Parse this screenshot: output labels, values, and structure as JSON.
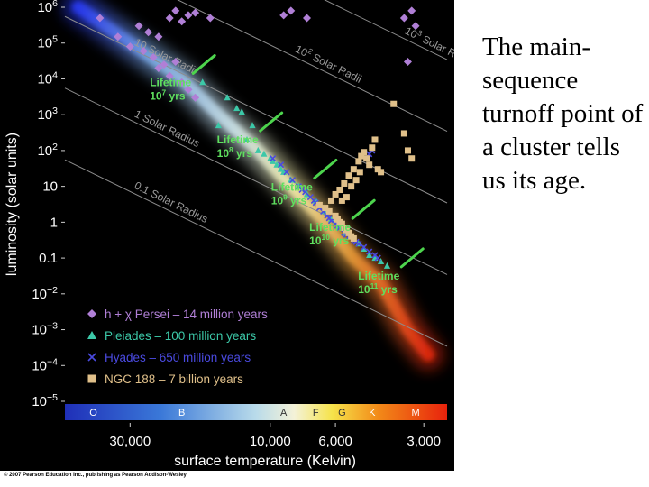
{
  "caption": "The main-sequence turnoff point of a cluster tells us its age.",
  "credit": "© 2007 Pearson Education Inc., publishing as Pearson Addison-Wesley",
  "chart_data": {
    "type": "scatter",
    "title": "",
    "xlabel": "surface temperature (Kelvin)",
    "ylabel": "luminosity (solar units)",
    "x_scale": "log-reversed",
    "y_scale": "log",
    "xlim": [
      50000,
      2500
    ],
    "ylim": [
      1e-05,
      1000000.0
    ],
    "x_ticks": [
      {
        "value": 30000,
        "label": "30,000"
      },
      {
        "value": 10000,
        "label": "10,000"
      },
      {
        "value": 6000,
        "label": "6,000"
      },
      {
        "value": 3000,
        "label": "3,000"
      }
    ],
    "y_ticks": [
      {
        "value": 1000000.0,
        "base": "10",
        "exp": "6"
      },
      {
        "value": 100000.0,
        "base": "10",
        "exp": "5"
      },
      {
        "value": 10000.0,
        "base": "10",
        "exp": "4"
      },
      {
        "value": 1000.0,
        "base": "10",
        "exp": "3"
      },
      {
        "value": 100.0,
        "base": "10",
        "exp": "2"
      },
      {
        "value": 10,
        "base": "10",
        "exp": ""
      },
      {
        "value": 1,
        "base": "1",
        "exp": ""
      },
      {
        "value": 0.1,
        "base": "0.1",
        "exp": ""
      },
      {
        "value": 0.01,
        "base": "10",
        "exp": "−2"
      },
      {
        "value": 0.001,
        "base": "10",
        "exp": "−3"
      },
      {
        "value": 0.0001,
        "base": "10",
        "exp": "−4"
      },
      {
        "value": 1e-05,
        "base": "10",
        "exp": "−5"
      }
    ],
    "spectral_classes": [
      {
        "label": "O",
        "temp": 40000
      },
      {
        "label": "B",
        "temp": 20000
      },
      {
        "label": "A",
        "temp": 9000
      },
      {
        "label": "F",
        "temp": 7000
      },
      {
        "label": "G",
        "temp": 5700
      },
      {
        "label": "K",
        "temp": 4500
      },
      {
        "label": "M",
        "temp": 3200
      }
    ],
    "radius_lines": [
      {
        "label_base": "10",
        "label_exp": "3",
        "label_suffix": " Solar Radii",
        "radius": 1000
      },
      {
        "label_base": "10",
        "label_exp": "2",
        "label_suffix": " Solar Radii",
        "radius": 100
      },
      {
        "label_base": "10 Solar Radii",
        "label_exp": "",
        "label_suffix": "",
        "radius": 10
      },
      {
        "label_base": "1 Solar Radius",
        "label_exp": "",
        "label_suffix": "",
        "radius": 1
      },
      {
        "label_base": "0.1 Solar Radius",
        "label_exp": "",
        "label_suffix": "",
        "radius": 0.1
      }
    ],
    "lifetime_labels": [
      {
        "word": "Lifetime",
        "base": "10",
        "exp": "7",
        "unit": " yrs",
        "temp": 22000,
        "lum": 10000
      },
      {
        "word": "Lifetime",
        "base": "10",
        "exp": "8",
        "unit": " yrs",
        "temp": 13000,
        "lum": 250
      },
      {
        "word": "Lifetime",
        "base": "10",
        "exp": "9",
        "unit": " yrs",
        "temp": 8500,
        "lum": 12
      },
      {
        "word": "Lifetime",
        "base": "10",
        "exp": "10",
        "unit": " yrs",
        "temp": 6300,
        "lum": 0.9
      },
      {
        "word": "Lifetime",
        "base": "10",
        "exp": "11",
        "unit": " yrs",
        "temp": 4300,
        "lum": 0.04
      }
    ],
    "legend": {
      "placement": "bottom-left",
      "entries": [
        {
          "symbol": "diamond",
          "color": "#b07fd6",
          "text": "h + χ Persei  –  14 million years"
        },
        {
          "symbol": "triangle",
          "color": "#3cc8a8",
          "text": "Pleiades  –  100 million years"
        },
        {
          "symbol": "cross",
          "color": "#4a4ae0",
          "text": "Hyades  –  650 million years"
        },
        {
          "symbol": "square",
          "color": "#e0c08a",
          "text": "NGC 188  –  7 billion years"
        }
      ]
    },
    "series": [
      {
        "name": "h + χ Persei – 14 million years",
        "symbol": "diamond",
        "color": "#b07fd6",
        "points": [
          [
            38000,
            500000
          ],
          [
            33000,
            150000
          ],
          [
            30000,
            80000
          ],
          [
            27000,
            60000
          ],
          [
            25000,
            40000
          ],
          [
            23000,
            25000
          ],
          [
            22000,
            12000
          ],
          [
            20000,
            8000
          ],
          [
            19000,
            5000
          ],
          [
            18000,
            3000
          ],
          [
            28000,
            300000
          ],
          [
            26000,
            200000
          ],
          [
            24000,
            150000
          ],
          [
            22000,
            500000
          ],
          [
            21000,
            800000
          ],
          [
            20000,
            400000
          ],
          [
            19000,
            600000
          ],
          [
            18000,
            700000
          ],
          [
            16000,
            500000
          ],
          [
            9000,
            600000
          ],
          [
            8500,
            800000
          ],
          [
            7500,
            500000
          ],
          [
            3500,
            500000
          ],
          [
            3300,
            800000
          ],
          [
            3200,
            300000
          ],
          [
            3400,
            30000
          ],
          [
            24000,
            20000
          ],
          [
            21000,
            30000
          ]
        ]
      },
      {
        "name": "Pleiades – 100 million years",
        "symbol": "triangle",
        "color": "#3cc8a8",
        "points": [
          [
            17000,
            8000
          ],
          [
            14000,
            3000
          ],
          [
            13000,
            1500
          ],
          [
            15000,
            500
          ],
          [
            12000,
            200
          ],
          [
            11000,
            100
          ],
          [
            10000,
            60
          ],
          [
            9500,
            40
          ],
          [
            9000,
            25
          ],
          [
            8500,
            15
          ],
          [
            8000,
            10
          ],
          [
            7500,
            6
          ],
          [
            7000,
            4
          ],
          [
            6800,
            3
          ],
          [
            6500,
            2
          ],
          [
            6200,
            1.2
          ],
          [
            5800,
            0.8
          ],
          [
            5500,
            0.5
          ],
          [
            5200,
            0.35
          ],
          [
            5000,
            0.25
          ],
          [
            4800,
            0.18
          ],
          [
            4600,
            0.12
          ],
          [
            4400,
            0.1
          ],
          [
            4200,
            0.08
          ],
          [
            4000,
            0.06
          ],
          [
            12500,
            1200
          ],
          [
            11500,
            500
          ],
          [
            10500,
            80
          ],
          [
            9800,
            50
          ],
          [
            9200,
            30
          ]
        ]
      },
      {
        "name": "Hyades – 650 million years",
        "symbol": "cross",
        "color": "#4a4ae0",
        "points": [
          [
            9800,
            60
          ],
          [
            9200,
            40
          ],
          [
            8800,
            25
          ],
          [
            8400,
            15
          ],
          [
            8000,
            10
          ],
          [
            7600,
            7
          ],
          [
            7300,
            5
          ],
          [
            7000,
            3.5
          ],
          [
            6800,
            2.5
          ],
          [
            6600,
            2
          ],
          [
            6400,
            1.5
          ],
          [
            6200,
            1.1
          ],
          [
            6000,
            0.9
          ],
          [
            5800,
            0.7
          ],
          [
            5600,
            0.5
          ],
          [
            5400,
            0.4
          ],
          [
            5200,
            0.3
          ],
          [
            5000,
            0.25
          ],
          [
            4800,
            0.2
          ],
          [
            4600,
            0.15
          ],
          [
            4400,
            0.12
          ],
          [
            4300,
            0.1
          ],
          [
            4500,
            100
          ],
          [
            4600,
            80
          ],
          [
            7800,
            8
          ],
          [
            7100,
            4
          ],
          [
            6300,
            1.3
          ],
          [
            5900,
            0.8
          ],
          [
            5500,
            0.45
          ],
          [
            5100,
            0.28
          ]
        ]
      },
      {
        "name": "NGC 188 – 7 billion years",
        "symbol": "square",
        "color": "#e0c08a",
        "points": [
          [
            6800,
            3
          ],
          [
            6500,
            2.5
          ],
          [
            6300,
            2
          ],
          [
            6000,
            1.5
          ],
          [
            5900,
            1.2
          ],
          [
            5800,
            1
          ],
          [
            5700,
            0.9
          ],
          [
            5600,
            0.7
          ],
          [
            5500,
            0.6
          ],
          [
            5400,
            0.5
          ],
          [
            5300,
            0.4
          ],
          [
            5200,
            0.35
          ],
          [
            6200,
            4
          ],
          [
            6000,
            6
          ],
          [
            5800,
            8
          ],
          [
            5600,
            12
          ],
          [
            5400,
            20
          ],
          [
            5200,
            30
          ],
          [
            5000,
            50
          ],
          [
            4900,
            70
          ],
          [
            4800,
            90
          ],
          [
            4700,
            60
          ],
          [
            4600,
            40
          ],
          [
            4500,
            120
          ],
          [
            4400,
            200
          ],
          [
            4300,
            30
          ],
          [
            4200,
            25
          ],
          [
            3800,
            2000
          ],
          [
            3500,
            300
          ],
          [
            3400,
            100
          ],
          [
            3300,
            60
          ],
          [
            5700,
            4
          ],
          [
            5500,
            5
          ],
          [
            5300,
            10
          ],
          [
            5100,
            15
          ],
          [
            4950,
            25
          ]
        ]
      }
    ]
  }
}
